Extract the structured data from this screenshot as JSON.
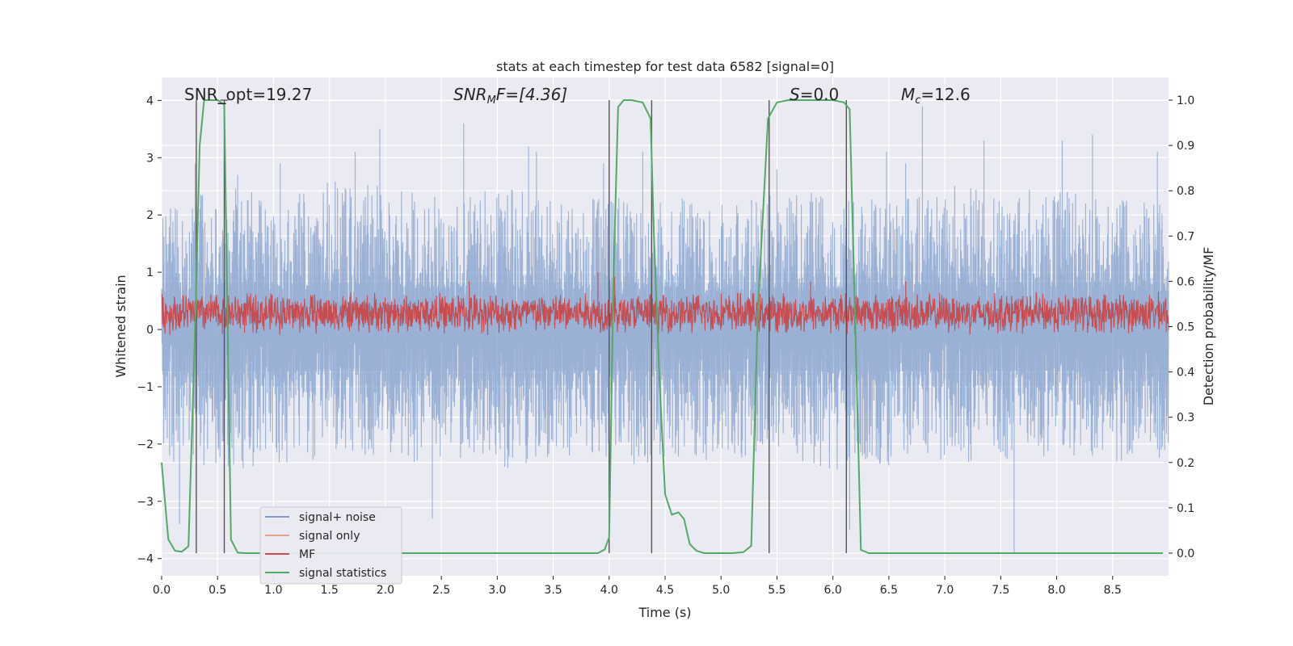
{
  "chart_data": {
    "type": "line",
    "title": "stats at each timestep for test data 6582 [signal=0]",
    "xlabel": "Time (s)",
    "ylabel": "Whitened strain",
    "y2label": "Detection probability/MF",
    "xlim": [
      0.0,
      9.0
    ],
    "ylim": [
      -4.3,
      4.4
    ],
    "y2lim": [
      -0.05,
      1.05
    ],
    "xticks": [
      0.0,
      0.5,
      1.0,
      1.5,
      2.0,
      2.5,
      3.0,
      3.5,
      4.0,
      4.5,
      5.0,
      5.5,
      6.0,
      6.5,
      7.0,
      7.5,
      8.0,
      8.5
    ],
    "xtick_labels": [
      "0.0",
      "0.5",
      "1.0",
      "1.5",
      "2.0",
      "2.5",
      "3.0",
      "3.5",
      "4.0",
      "4.5",
      "5.0",
      "5.5",
      "6.0",
      "6.5",
      "7.0",
      "7.5",
      "8.0",
      "8.5"
    ],
    "yticks": [
      4,
      3,
      2,
      1,
      0,
      -1,
      -2,
      -3,
      -4
    ],
    "ytick_labels": [
      "4",
      "3",
      "2",
      "1",
      "0",
      "−1",
      "−2",
      "−3",
      "−4"
    ],
    "y2ticks": [
      1.0,
      0.9,
      0.8,
      0.7,
      0.6,
      0.5,
      0.4,
      0.3,
      0.2,
      0.1,
      0.0
    ],
    "y2tick_labels": [
      "1.0",
      "0.9",
      "0.8",
      "0.7",
      "0.6",
      "0.5",
      "0.4",
      "0.3",
      "0.2",
      "0.1",
      "0.0"
    ],
    "grid": true,
    "legend_position": "lower-left",
    "annotations": {
      "snr_opt": "SNR_opt=19.27",
      "snr_mf_sym": "SNR",
      "snr_mf_sub": "M",
      "snr_mf_rest": "F=[4.36]",
      "s_sym": "S",
      "s_rest": "=0.0",
      "mc_sym": "M",
      "mc_sub": "c",
      "mc_rest": "=12.6"
    },
    "series": [
      {
        "name": "signal+ noise",
        "color": "#7f9ccb",
        "axis": "left",
        "envelope": {
          "t": [
            0.0,
            0.5,
            1.0,
            1.5,
            2.0,
            2.5,
            3.0,
            3.5,
            4.0,
            4.5,
            5.0,
            5.5,
            6.0,
            6.5,
            7.0,
            7.5,
            8.0,
            8.5,
            9.0
          ],
          "upper": [
            2.1,
            2.6,
            2.3,
            2.6,
            2.5,
            2.3,
            2.5,
            2.3,
            2.3,
            2.4,
            2.2,
            2.4,
            2.4,
            2.3,
            2.6,
            2.4,
            2.5,
            2.3,
            2.2
          ],
          "lower": [
            -2.3,
            -2.4,
            -2.5,
            -2.2,
            -2.4,
            -2.3,
            -2.5,
            -2.2,
            -2.4,
            -2.3,
            -2.4,
            -2.2,
            -2.5,
            -2.4,
            -2.3,
            -2.4,
            -2.2,
            -2.3,
            -2.3
          ]
        },
        "peaks": [
          [
            0.16,
            -3.4
          ],
          [
            0.3,
            2.9
          ],
          [
            0.68,
            2.7
          ],
          [
            1.06,
            2.9
          ],
          [
            1.73,
            3.1
          ],
          [
            1.95,
            3.5
          ],
          [
            2.42,
            -3.3
          ],
          [
            2.7,
            3.6
          ],
          [
            3.28,
            3.2
          ],
          [
            3.35,
            3.1
          ],
          [
            3.95,
            2.9
          ],
          [
            4.3,
            3.1
          ],
          [
            5.5,
            2.8
          ],
          [
            6.15,
            -3.5
          ],
          [
            6.48,
            3.1
          ],
          [
            6.65,
            2.9
          ],
          [
            6.8,
            3.9
          ],
          [
            7.35,
            3.3
          ],
          [
            7.62,
            -3.9
          ],
          [
            8.05,
            3.3
          ],
          [
            8.32,
            3.4
          ],
          [
            8.9,
            3.1
          ]
        ]
      },
      {
        "name": "signal only",
        "color": "#e8a18a",
        "axis": "left",
        "values": []
      },
      {
        "name": "MF",
        "color": "#c44e52",
        "axis": "right",
        "baseline": 0.53,
        "spread": 0.05,
        "peaks": [
          [
            2.75,
            0.6
          ],
          [
            3.9,
            0.62
          ],
          [
            4.05,
            0.61
          ],
          [
            5.8,
            0.6
          ],
          [
            6.65,
            0.6
          ]
        ]
      },
      {
        "name": "signal statistics",
        "color": "#55a868",
        "axis": "right",
        "x": [
          0.0,
          0.06,
          0.12,
          0.18,
          0.24,
          0.3,
          0.34,
          0.38,
          0.5,
          0.56,
          0.62,
          0.68,
          0.75,
          1.0,
          2.0,
          3.0,
          3.9,
          3.96,
          4.0,
          4.04,
          4.08,
          4.13,
          4.2,
          4.3,
          4.37,
          4.4,
          4.45,
          4.5,
          4.56,
          4.62,
          4.67,
          4.72,
          4.78,
          4.85,
          4.95,
          5.1,
          5.2,
          5.27,
          5.33,
          5.42,
          5.5,
          5.6,
          5.7,
          6.0,
          6.1,
          6.15,
          6.2,
          6.25,
          6.32,
          6.5,
          7.5,
          8.5,
          8.95
        ],
        "values": [
          0.2,
          0.03,
          0.005,
          0.003,
          0.015,
          0.5,
          0.9,
          1.0,
          1.0,
          0.99,
          0.03,
          0.001,
          0.0,
          0.0,
          0.0,
          0.0,
          0.0,
          0.008,
          0.035,
          0.62,
          0.985,
          1.0,
          1.0,
          0.995,
          0.96,
          0.7,
          0.38,
          0.13,
          0.085,
          0.09,
          0.075,
          0.02,
          0.005,
          0.0,
          0.0,
          0.0,
          0.002,
          0.016,
          0.54,
          0.96,
          0.995,
          1.0,
          1.0,
          1.0,
          0.995,
          0.98,
          0.5,
          0.007,
          0.0,
          0.0,
          0.0,
          0.0,
          0.0
        ]
      }
    ],
    "vlines": [
      0.31,
      0.56,
      4.0,
      4.38,
      5.43,
      6.12
    ]
  }
}
